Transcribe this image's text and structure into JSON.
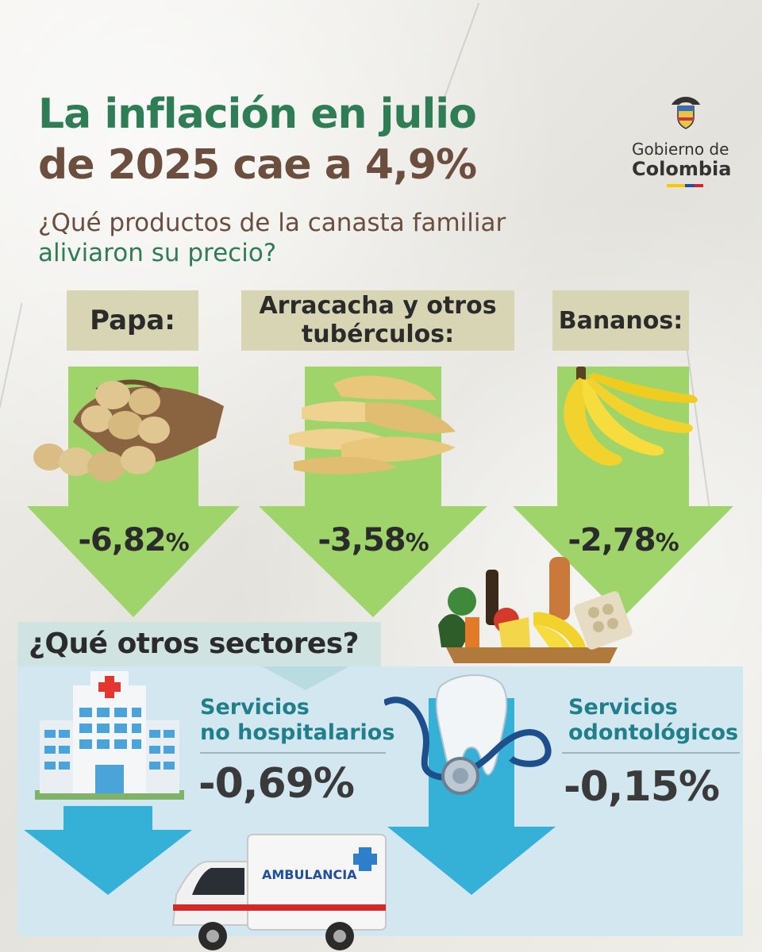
{
  "header": {
    "title_line1": "La inflación en julio",
    "title_line2": "de 2025 cae a 4,9%",
    "subtitle_line1": "¿Qué productos de la canasta familiar",
    "subtitle_line2": "aliviaron su precio?"
  },
  "logo": {
    "line1": "Gobierno de",
    "line2": "Colombia",
    "flag_colors": [
      "#f6c900",
      "#1f4ea3",
      "#d6202a"
    ]
  },
  "products": [
    {
      "label": "Papa:",
      "value": "-6,82",
      "unit": "%",
      "icon": "potato-sack-icon"
    },
    {
      "label_line1": "Arracacha y otros",
      "label_line2": "tubérculos:",
      "value": "-3,58",
      "unit": "%",
      "icon": "arracacha-icon"
    },
    {
      "label": "Bananos:",
      "value": "-2,78",
      "unit": "%",
      "icon": "banana-bunch-icon"
    }
  ],
  "sectors": {
    "heading": "¿Qué otros sectores?",
    "items": [
      {
        "title_line1": "Servicios",
        "title_line2": "no hospitalarios",
        "value": "-0,69%",
        "icon": "hospital-icon"
      },
      {
        "title_line1": "Servicios",
        "title_line2": "odontológicos",
        "value": "-0,15%",
        "icon": "tooth-stethoscope-icon"
      }
    ],
    "ambulance_text": "AMBULANCIA"
  },
  "colors": {
    "green_title": "#2e7d55",
    "brown_title": "#6b4e3d",
    "green_arrow": "#9ed46a",
    "blue_arrow": "#35b0d6",
    "label_bg": "#d7d5b4",
    "teal_text": "#1f7f8a"
  }
}
